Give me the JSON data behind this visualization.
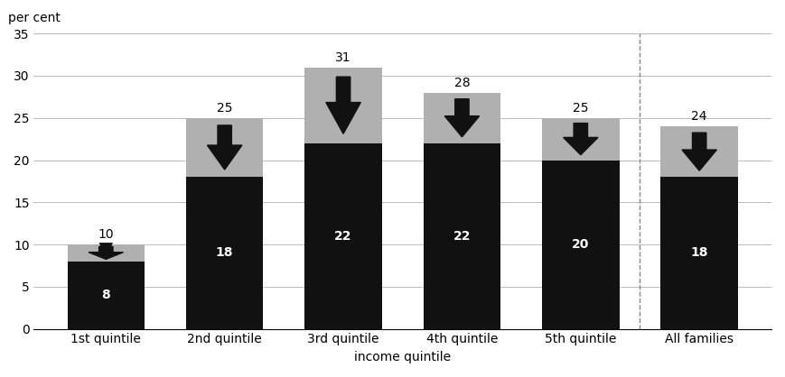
{
  "categories": [
    "1st quintile",
    "2nd quintile",
    "3rd quintile",
    "4th quintile",
    "5th quintile",
    "All families"
  ],
  "black_values": [
    8,
    18,
    22,
    22,
    20,
    18
  ],
  "total_values": [
    10,
    25,
    31,
    28,
    25,
    24
  ],
  "black_color": "#111111",
  "gray_color": "#b0b0b0",
  "arrow_color": "#111111",
  "ylabel_text": "per cent",
  "xlabel": "income quintile",
  "ylim": [
    0,
    35
  ],
  "yticks": [
    0,
    5,
    10,
    15,
    20,
    25,
    30,
    35
  ],
  "bar_width": 0.65,
  "dashed_line_x": 4.5,
  "figsize": [
    8.69,
    4.18
  ],
  "dpi": 100
}
